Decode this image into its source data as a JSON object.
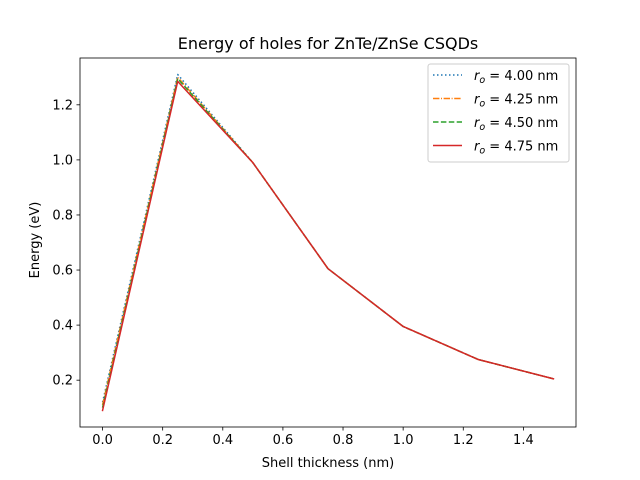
{
  "chart_data": {
    "type": "line",
    "title": "Energy of holes for ZnTe/ZnSe CSQDs",
    "xlabel": "Shell thickness (nm)",
    "ylabel": "Energy (eV)",
    "xlim": [
      -0.075,
      1.575
    ],
    "ylim": [
      0.03,
      1.37
    ],
    "xticks": [
      0.0,
      0.2,
      0.4,
      0.6,
      0.8,
      1.0,
      1.2,
      1.4
    ],
    "xtick_labels": [
      "0.0",
      "0.2",
      "0.4",
      "0.6",
      "0.8",
      "1.0",
      "1.2",
      "1.4"
    ],
    "yticks": [
      0.2,
      0.4,
      0.6,
      0.8,
      1.0,
      1.2
    ],
    "ytick_labels": [
      "0.2",
      "0.4",
      "0.6",
      "0.8",
      "1.0",
      "1.2"
    ],
    "grid": false,
    "legend_position": "top-right",
    "x": [
      0.0,
      0.25,
      0.5,
      0.75,
      1.0,
      1.25,
      1.5
    ],
    "series": [
      {
        "name": "r_o = 4.00 nm",
        "label_prefix": "r",
        "label_sub": "o",
        "label_suffix": " = 4.00 nm",
        "color": "#1f77b4",
        "style": "dotted",
        "values": [
          0.12,
          1.31,
          0.99,
          0.605,
          0.395,
          0.275,
          0.205
        ]
      },
      {
        "name": "r_o = 4.25 nm",
        "label_prefix": "r",
        "label_sub": "o",
        "label_suffix": " = 4.25 nm",
        "color": "#ff7f0e",
        "style": "dashdot",
        "values": [
          0.11,
          1.3,
          0.99,
          0.605,
          0.395,
          0.275,
          0.205
        ]
      },
      {
        "name": "r_o = 4.50 nm",
        "label_prefix": "r",
        "label_sub": "o",
        "label_suffix": " = 4.50 nm",
        "color": "#2ca02c",
        "style": "dashed",
        "values": [
          0.1,
          1.295,
          0.99,
          0.605,
          0.395,
          0.275,
          0.205
        ]
      },
      {
        "name": "r_o = 4.75 nm",
        "label_prefix": "r",
        "label_sub": "o",
        "label_suffix": " = 4.75 nm",
        "color": "#d62728",
        "style": "solid",
        "values": [
          0.09,
          1.285,
          0.99,
          0.605,
          0.395,
          0.275,
          0.205
        ]
      }
    ]
  }
}
